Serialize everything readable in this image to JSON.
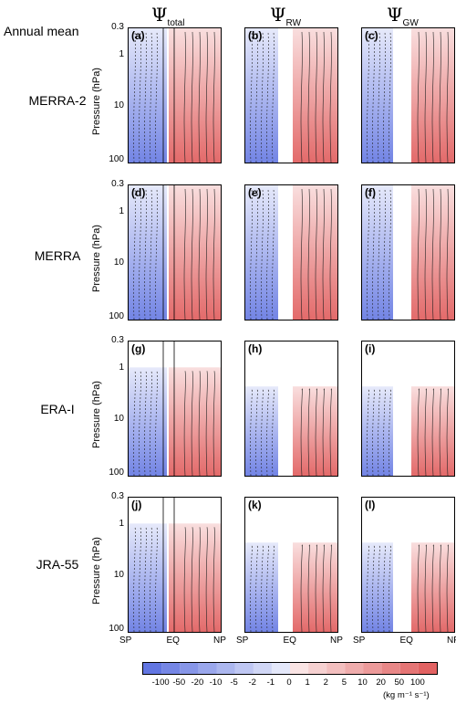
{
  "figure_label": "Annual mean",
  "columns": [
    {
      "symbol": "Ψ",
      "sub": "total"
    },
    {
      "symbol": "Ψ",
      "sub": "RW"
    },
    {
      "symbol": "Ψ",
      "sub": "GW"
    }
  ],
  "rows": [
    "MERRA-2",
    "MERRA",
    "ERA-I",
    "JRA-55"
  ],
  "panel_labels": [
    "(a)",
    "(b)",
    "(c)",
    "(d)",
    "(e)",
    "(f)",
    "(g)",
    "(h)",
    "(i)",
    "(j)",
    "(k)",
    "(l)"
  ],
  "y_axis_label": "Pressure (hPa)",
  "y_ticks": [
    "0.3",
    "1",
    "10",
    "100"
  ],
  "x_ticks": [
    "SP",
    "EQ",
    "NP"
  ],
  "colorbar": {
    "ticks": [
      "-100",
      "-50",
      "-20",
      "-10",
      "-5",
      "-2",
      "-1",
      "0",
      "1",
      "2",
      "5",
      "10",
      "20",
      "50",
      "100"
    ],
    "units": "(kg m⁻¹ s⁻¹)",
    "neg_color": "#5a6fe0",
    "pos_color": "#e05a5a"
  }
}
